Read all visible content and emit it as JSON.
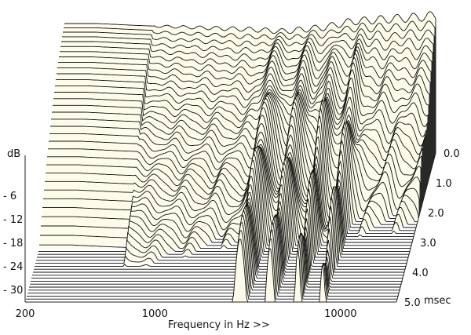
{
  "chart_data": {
    "type": "area",
    "subtype": "cumulative-spectral-decay-waterfall",
    "xlabel": "Frequency in Hz >>",
    "ylabel": "dB",
    "zlabel": "msec",
    "x_scale": "log",
    "x_range_hz": [
      200,
      20000
    ],
    "x_ticks": [
      {
        "value": 200,
        "label": "200"
      },
      {
        "value": 1000,
        "label": "1000"
      },
      {
        "value": 10000,
        "label": "10000"
      }
    ],
    "y_range_db": [
      -33,
      0
    ],
    "y_ticks": [
      {
        "value": -6,
        "label": "- 6"
      },
      {
        "value": -12,
        "label": "- 12"
      },
      {
        "value": -18,
        "label": "- 18"
      },
      {
        "value": -24,
        "label": "- 24"
      },
      {
        "value": -30,
        "label": "- 30"
      }
    ],
    "z_range_msec": [
      0,
      5
    ],
    "z_ticks": [
      {
        "value": 0.0,
        "label": "0.0"
      },
      {
        "value": 1.0,
        "label": "1.0"
      },
      {
        "value": 2.0,
        "label": "2.0"
      },
      {
        "value": 3.0,
        "label": "3.0"
      },
      {
        "value": 4.0,
        "label": "4.0"
      },
      {
        "value": 5.0,
        "label": "5.0"
      }
    ],
    "slice_count": 50,
    "slice_step_msec": 0.1,
    "initial_response_db": {
      "freq_hz": [
        200,
        300,
        500,
        1000,
        2000,
        3000,
        5000,
        7000,
        10000,
        15000,
        20000
      ],
      "level_db": [
        0,
        0,
        -0.5,
        -1,
        -1.5,
        -2,
        -1,
        0.5,
        1,
        1.5,
        2
      ]
    },
    "grid": false,
    "legend": "none"
  }
}
